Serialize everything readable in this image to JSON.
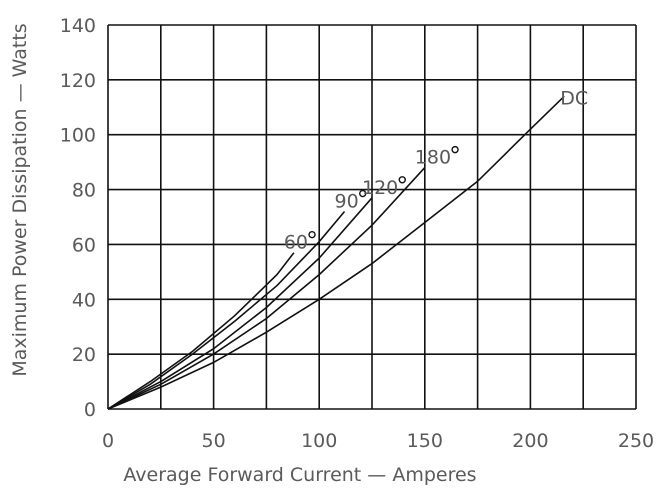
{
  "chart_data": {
    "type": "line",
    "xlabel": "Average Forward Current — Amperes",
    "ylabel": "Maximum Power Dissipation — Watts",
    "xlim": [
      0,
      250
    ],
    "ylim": [
      0,
      140
    ],
    "x_ticks": [
      "0",
      "50",
      "100",
      "150",
      "200",
      "250"
    ],
    "y_ticks": [
      "0",
      "20",
      "40",
      "60",
      "80",
      "100",
      "120",
      "140"
    ],
    "grid": true,
    "series": [
      {
        "name": "60°",
        "x": [
          0,
          20,
          40,
          60,
          80,
          88
        ],
        "y": [
          0,
          10,
          21,
          34,
          49,
          57
        ]
      },
      {
        "name": "90°",
        "x": [
          0,
          20,
          40,
          60,
          80,
          100,
          112
        ],
        "y": [
          0,
          9,
          20,
          32,
          45,
          61,
          72
        ]
      },
      {
        "name": "120°",
        "x": [
          0,
          25,
          50,
          75,
          100,
          125
        ],
        "y": [
          0,
          10,
          22,
          37,
          55,
          77
        ]
      },
      {
        "name": "180°",
        "x": [
          0,
          25,
          50,
          75,
          100,
          125,
          150
        ],
        "y": [
          0,
          9,
          20,
          33,
          49,
          67,
          88
        ]
      },
      {
        "name": "DC",
        "x": [
          0,
          25,
          50,
          75,
          100,
          125,
          150,
          175,
          200,
          216
        ],
        "y": [
          0,
          8,
          17,
          28,
          40,
          53,
          68,
          83,
          102,
          114
        ]
      }
    ]
  }
}
